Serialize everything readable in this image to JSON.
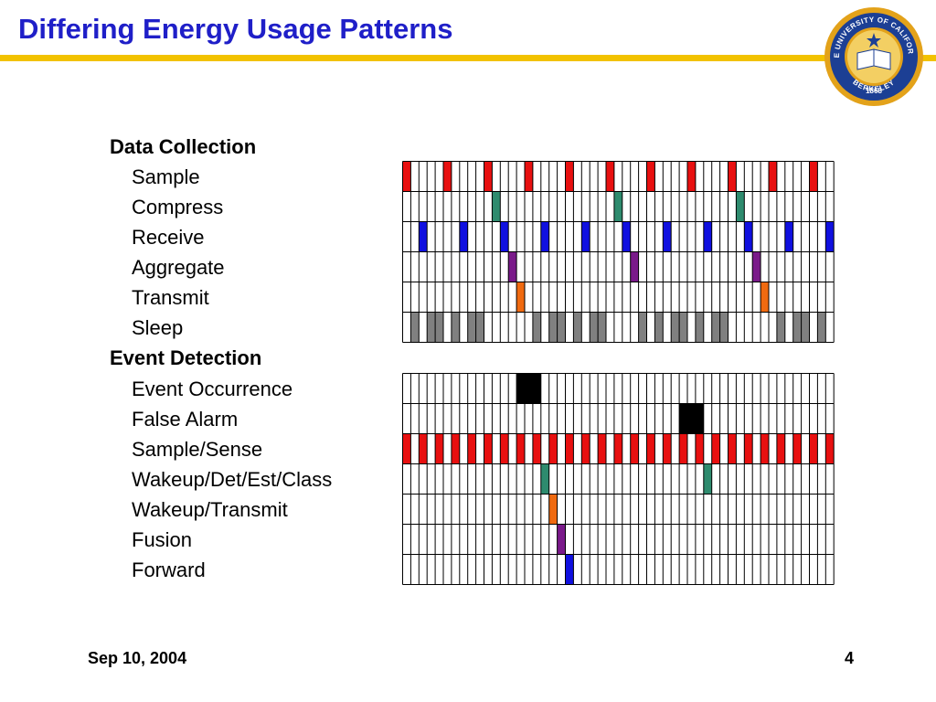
{
  "slide": {
    "title": "Differing Energy Usage Patterns",
    "seal": {
      "name": "university-seal",
      "text_top": "THE UNIVERSITY OF CALIFORNIA",
      "text_bottom": "BERKELEY",
      "year": "1868",
      "colors": {
        "gold": "#e3a21a",
        "navy": "#1c3f94"
      }
    },
    "footer": {
      "date": "Sep 10, 2004",
      "page": "4"
    }
  },
  "colors": {
    "red": "#e81010",
    "green": "#2e8b6e",
    "blue": "#1010e0",
    "purple": "#7a1a8a",
    "orange": "#f06a10",
    "gray": "#808080",
    "black": "#000000",
    "accent_title": "#1f1fc8",
    "rule": "#f2c200"
  },
  "timelines": {
    "columns": 53,
    "data_collection": {
      "heading": "Data Collection",
      "rows": [
        {
          "label": "Sample",
          "color": "red",
          "events": [
            [
              0,
              1
            ],
            [
              5,
              1
            ],
            [
              10,
              1
            ],
            [
              15,
              1
            ],
            [
              20,
              1
            ],
            [
              25,
              1
            ],
            [
              30,
              1
            ],
            [
              35,
              1
            ],
            [
              40,
              1
            ],
            [
              45,
              1
            ],
            [
              50,
              1
            ]
          ]
        },
        {
          "label": "Compress",
          "color": "green",
          "events": [
            [
              11,
              1
            ],
            [
              26,
              1
            ],
            [
              41,
              1
            ]
          ]
        },
        {
          "label": "Receive",
          "color": "blue",
          "events": [
            [
              2,
              1
            ],
            [
              7,
              1
            ],
            [
              12,
              1
            ],
            [
              17,
              1
            ],
            [
              22,
              1
            ],
            [
              27,
              1
            ],
            [
              32,
              1
            ],
            [
              37,
              1
            ],
            [
              42,
              1
            ],
            [
              47,
              1
            ],
            [
              52,
              1
            ]
          ]
        },
        {
          "label": "Aggregate",
          "color": "purple",
          "events": [
            [
              13,
              1
            ],
            [
              28,
              1
            ],
            [
              43,
              1
            ]
          ]
        },
        {
          "label": "Transmit",
          "color": "orange",
          "events": [
            [
              14,
              1
            ],
            [
              44,
              1
            ]
          ]
        },
        {
          "label": "Sleep",
          "color": "gray",
          "events": [
            [
              1,
              1
            ],
            [
              3,
              1
            ],
            [
              4,
              1
            ],
            [
              6,
              1
            ],
            [
              8,
              1
            ],
            [
              9,
              1
            ],
            [
              16,
              1
            ],
            [
              18,
              1
            ],
            [
              19,
              1
            ],
            [
              21,
              1
            ],
            [
              23,
              1
            ],
            [
              24,
              1
            ],
            [
              29,
              1
            ],
            [
              31,
              1
            ],
            [
              33,
              1
            ],
            [
              34,
              1
            ],
            [
              36,
              1
            ],
            [
              38,
              1
            ],
            [
              39,
              1
            ],
            [
              46,
              1
            ],
            [
              48,
              1
            ],
            [
              49,
              1
            ],
            [
              51,
              1
            ]
          ]
        }
      ]
    },
    "event_detection": {
      "heading": "Event Detection",
      "rows": [
        {
          "label": "Event Occurrence",
          "color": "black",
          "events": [
            [
              14,
              3
            ]
          ]
        },
        {
          "label": "False Alarm",
          "color": "black",
          "events": [
            [
              34,
              3
            ]
          ]
        },
        {
          "label": "Sample/Sense",
          "color": "red",
          "events": [
            [
              0,
              1
            ],
            [
              2,
              1
            ],
            [
              4,
              1
            ],
            [
              6,
              1
            ],
            [
              8,
              1
            ],
            [
              10,
              1
            ],
            [
              12,
              1
            ],
            [
              14,
              1
            ],
            [
              16,
              1
            ],
            [
              18,
              1
            ],
            [
              20,
              1
            ],
            [
              22,
              1
            ],
            [
              24,
              1
            ],
            [
              26,
              1
            ],
            [
              28,
              1
            ],
            [
              30,
              1
            ],
            [
              32,
              1
            ],
            [
              34,
              1
            ],
            [
              36,
              1
            ],
            [
              38,
              1
            ],
            [
              40,
              1
            ],
            [
              42,
              1
            ],
            [
              44,
              1
            ],
            [
              46,
              1
            ],
            [
              48,
              1
            ],
            [
              50,
              1
            ],
            [
              52,
              1
            ]
          ]
        },
        {
          "label": "Wakeup/Det/Est/Class",
          "color": "green",
          "events": [
            [
              17,
              1
            ],
            [
              37,
              1
            ]
          ]
        },
        {
          "label": "Wakeup/Transmit",
          "color": "orange",
          "events": [
            [
              18,
              1
            ]
          ]
        },
        {
          "label": "Fusion",
          "color": "purple",
          "events": [
            [
              19,
              1
            ]
          ]
        },
        {
          "label": "Forward",
          "color": "blue",
          "events": [
            [
              20,
              1
            ]
          ]
        }
      ]
    }
  }
}
